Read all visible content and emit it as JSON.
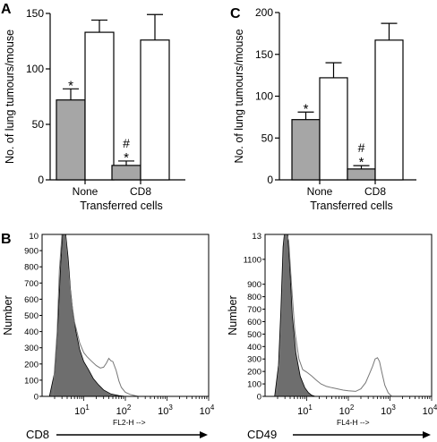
{
  "panels": {
    "a": {
      "letter": "A"
    },
    "c": {
      "letter": "C"
    },
    "b": {
      "letter": "B"
    }
  },
  "chart_data": [
    {
      "panel": "A",
      "type": "bar",
      "ylabel": "No. of lung tumours/mouse",
      "xlabel": "Transferred cells",
      "ylim": [
        0,
        150
      ],
      "yticks": [
        "0",
        "50",
        "100",
        "150"
      ],
      "categories": [
        "None",
        "CD8"
      ],
      "series": [
        {
          "fill": "#a6a6a6",
          "values": [
            72,
            13
          ],
          "errors": [
            10,
            4
          ]
        },
        {
          "fill": "#ffffff",
          "values": [
            133,
            126
          ],
          "errors": [
            11,
            23
          ]
        }
      ],
      "annotations": [
        {
          "category": 0,
          "series": 0,
          "marks": [
            "*"
          ]
        },
        {
          "category": 1,
          "series": 0,
          "marks": [
            "#",
            "*"
          ]
        }
      ]
    },
    {
      "panel": "C",
      "type": "bar",
      "ylabel": "No. of lung tumours/mouse",
      "xlabel": "Transferred cells",
      "ylim": [
        0,
        200
      ],
      "yticks": [
        "0",
        "50",
        "100",
        "150",
        "200"
      ],
      "categories": [
        "None",
        "CD8"
      ],
      "series": [
        {
          "fill": "#a6a6a6",
          "values": [
            72,
            13
          ],
          "errors": [
            9,
            4
          ]
        },
        {
          "fill": "#ffffff",
          "values": [
            122,
            167
          ],
          "errors": [
            18,
            20
          ]
        }
      ],
      "annotations": [
        {
          "category": 0,
          "series": 0,
          "marks": [
            "*"
          ]
        },
        {
          "category": 1,
          "series": 0,
          "marks": [
            "#",
            "*"
          ]
        }
      ]
    },
    {
      "panel": "B-left",
      "type": "area",
      "ylabel": "Number",
      "xlabel": "CD8",
      "axis_caption": "FL2-H -->",
      "xscale": "log",
      "xlim": [
        1,
        10000
      ],
      "xticks": [
        {
          "base": "10",
          "exp": "1"
        },
        {
          "base": "10",
          "exp": "2"
        },
        {
          "base": "10",
          "exp": "3"
        },
        {
          "base": "10",
          "exp": "4"
        }
      ],
      "ylim": [
        0,
        1000
      ],
      "ytop_label": "10",
      "yticks": [
        "0",
        "100",
        "200",
        "300",
        "400",
        "500",
        "600",
        "700",
        "800",
        "900"
      ],
      "series": [
        {
          "style": "filled",
          "fill": "#6e6e6e",
          "x": [
            1.5,
            2,
            2.4,
            2.8,
            3.1,
            3.4,
            3.7,
            4.2,
            4.8,
            5.5,
            6.5,
            8,
            10,
            13,
            17,
            22,
            30,
            45,
            70,
            100
          ],
          "y": [
            0,
            150,
            450,
            820,
            1000,
            1000,
            1000,
            860,
            660,
            520,
            400,
            290,
            215,
            165,
            110,
            75,
            40,
            15,
            5,
            0
          ]
        },
        {
          "style": "line",
          "color": "#777777",
          "x": [
            1.8,
            2.3,
            2.6,
            3.0,
            3.3,
            3.6,
            4,
            5,
            6,
            8,
            10,
            12,
            15,
            20,
            25,
            30,
            35,
            40,
            45,
            50,
            60,
            70,
            80,
            100,
            130,
            160,
            200
          ],
          "y": [
            0,
            400,
            780,
            1000,
            1000,
            990,
            850,
            600,
            460,
            330,
            270,
            245,
            220,
            190,
            175,
            180,
            205,
            235,
            220,
            215,
            160,
            95,
            55,
            25,
            12,
            6,
            0
          ]
        }
      ]
    },
    {
      "panel": "B-right",
      "type": "area",
      "ylabel": "Number",
      "xlabel": "CD49",
      "axis_caption": "FL4-H -->",
      "xscale": "log",
      "xlim": [
        1,
        10000
      ],
      "xticks": [
        {
          "base": "10",
          "exp": "1"
        },
        {
          "base": "10",
          "exp": "2"
        },
        {
          "base": "10",
          "exp": "3"
        },
        {
          "base": "10",
          "exp": "4"
        }
      ],
      "ylim": [
        0,
        1300
      ],
      "ytop_label": "13",
      "yticks": [
        "0",
        "100",
        "200",
        "300",
        "400",
        "500",
        "600",
        "700",
        "800",
        "900",
        "1100"
      ],
      "series": [
        {
          "style": "filled",
          "fill": "#6e6e6e",
          "x": [
            1.7,
            2.1,
            2.4,
            2.7,
            2.9,
            3.2,
            3.5,
            3.9,
            4.5,
            5.5,
            7,
            9,
            11,
            13,
            16
          ],
          "y": [
            0,
            250,
            700,
            1200,
            1300,
            1300,
            1300,
            1050,
            650,
            350,
            160,
            70,
            30,
            10,
            0
          ]
        },
        {
          "style": "line",
          "color": "#777777",
          "x": [
            1.9,
            2.3,
            2.7,
            3.0,
            3.3,
            3.7,
            4.3,
            5.2,
            6.5,
            8,
            10,
            13,
            17,
            22,
            30,
            40,
            55,
            75,
            100,
            150,
            200,
            260,
            320,
            380,
            440,
            500,
            560,
            640,
            750,
            900,
            1100
          ],
          "y": [
            0,
            350,
            900,
            1300,
            1300,
            1250,
            900,
            520,
            300,
            215,
            195,
            165,
            130,
            100,
            80,
            70,
            60,
            50,
            45,
            40,
            60,
            110,
            180,
            240,
            300,
            310,
            280,
            190,
            90,
            30,
            0
          ]
        }
      ]
    }
  ]
}
